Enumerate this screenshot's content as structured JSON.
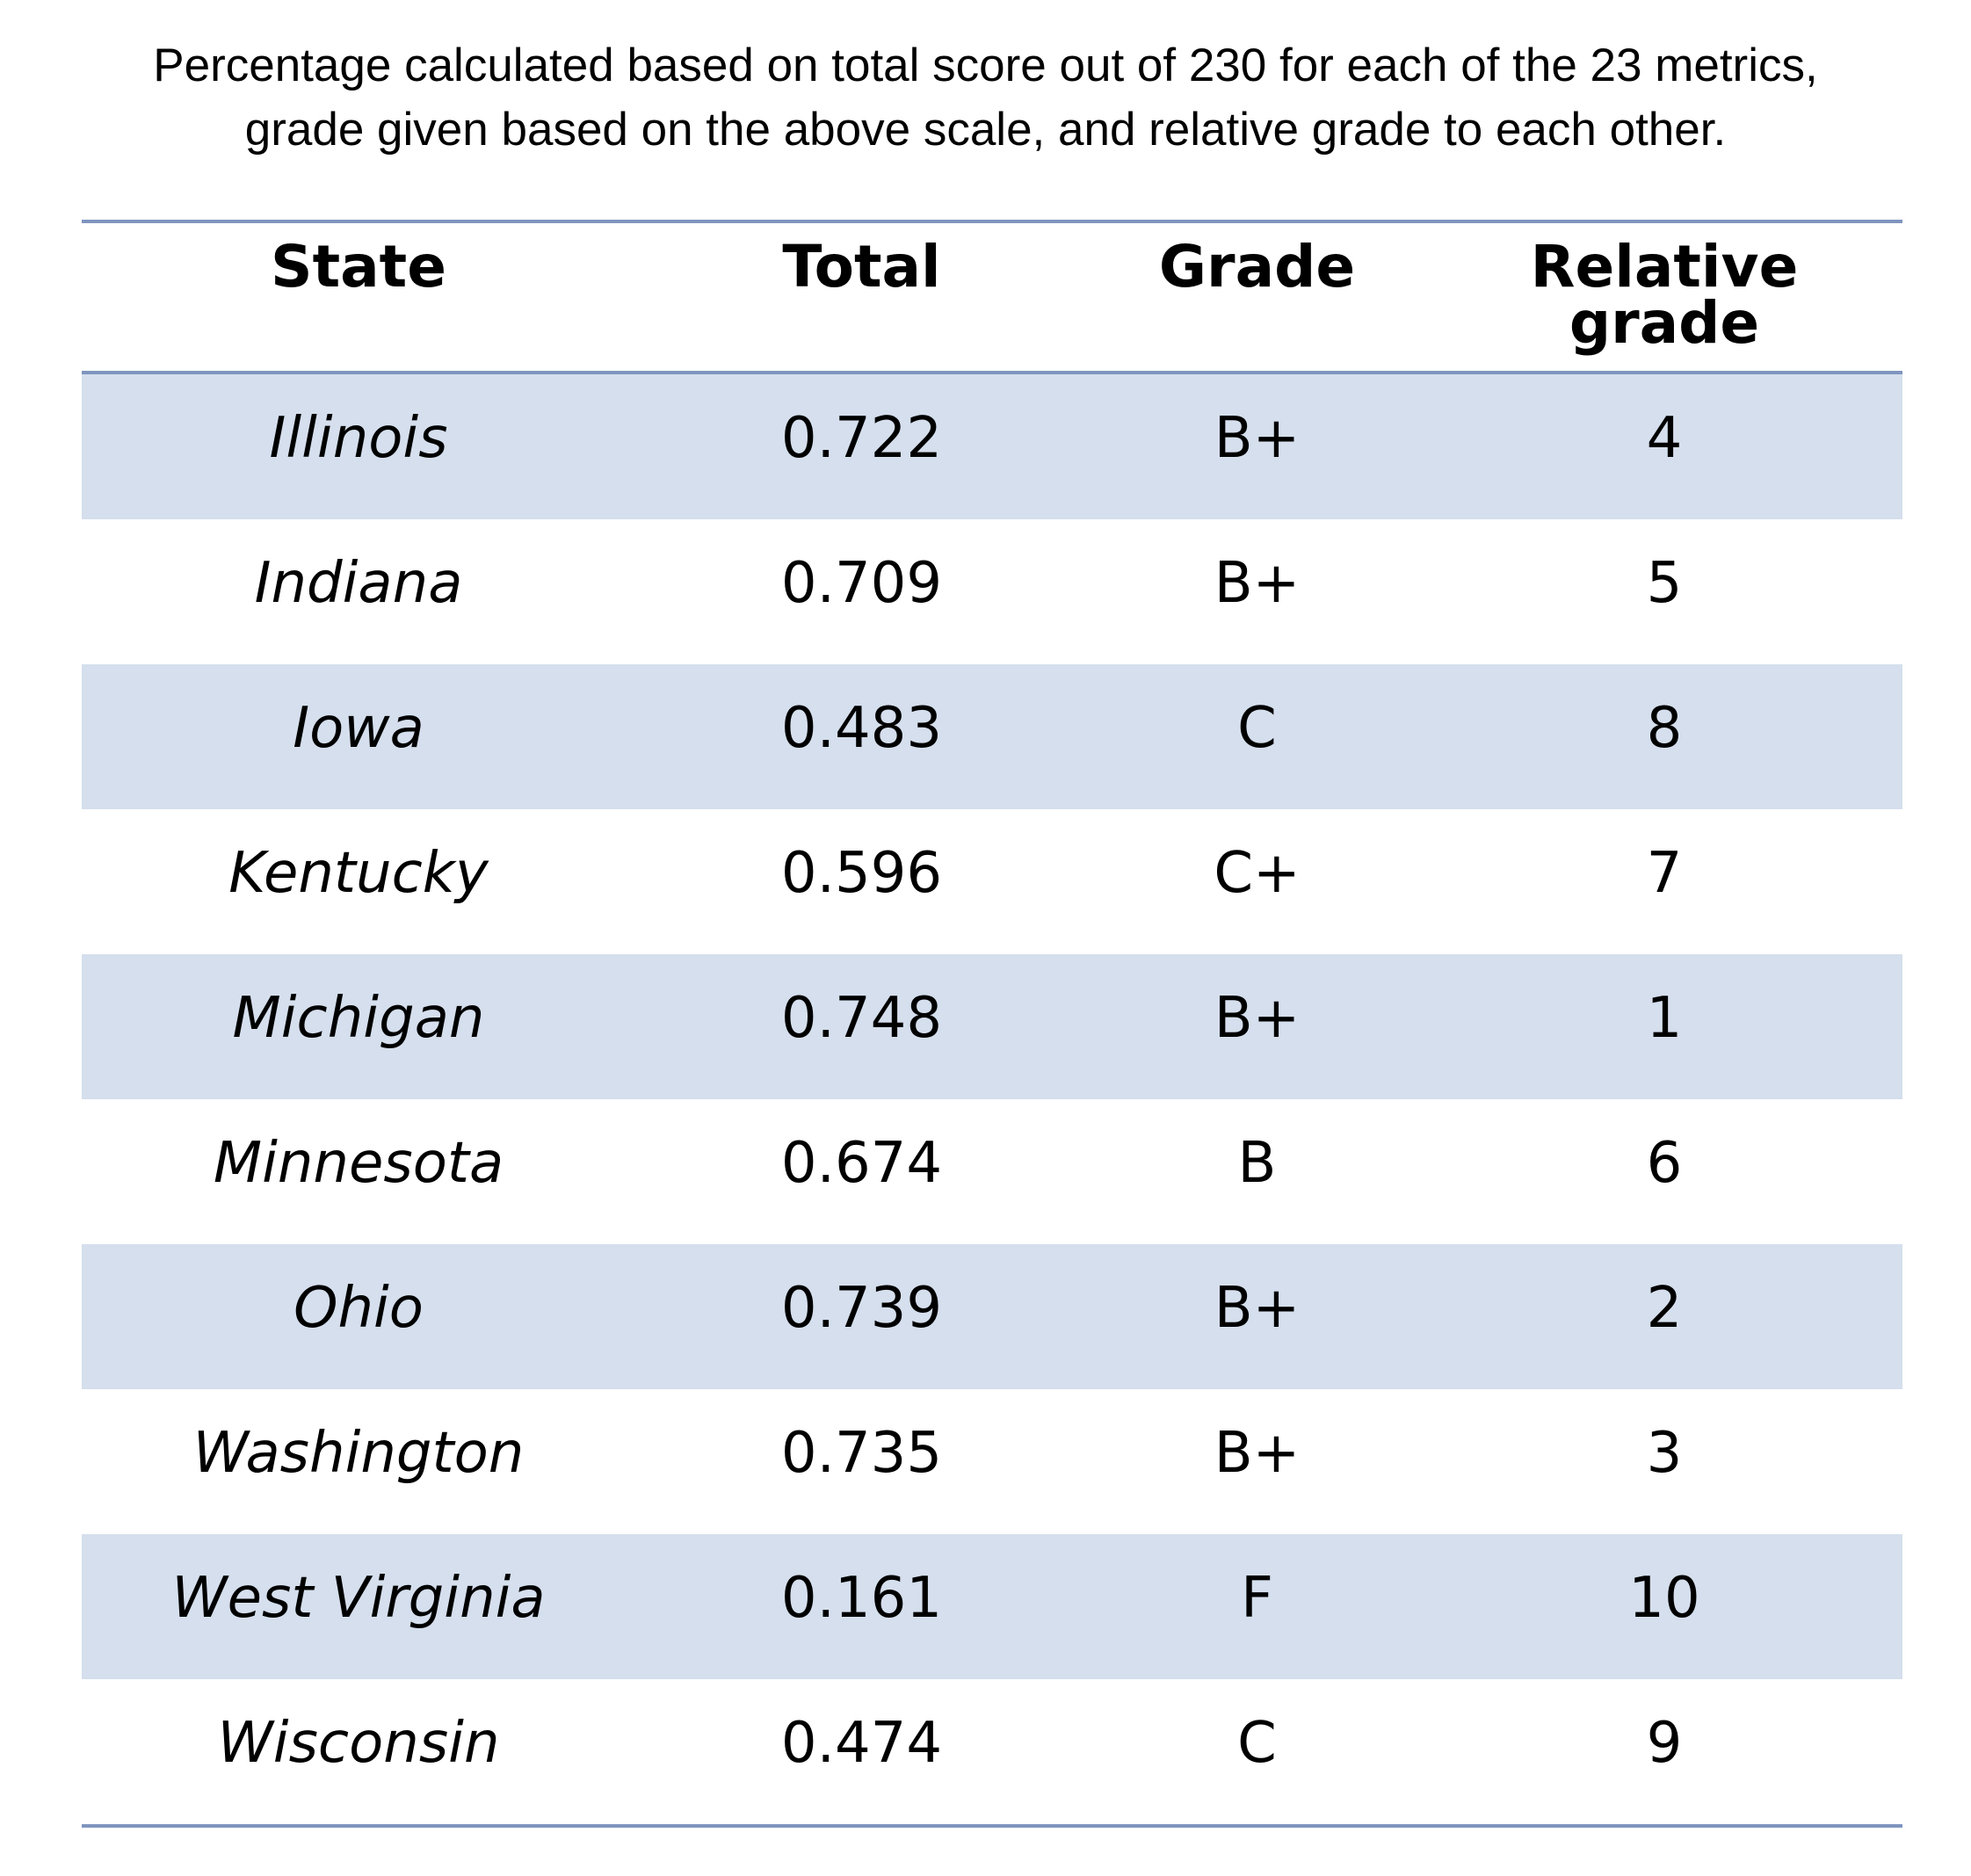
{
  "caption": {
    "line1": "Percentage calculated based on total score out of 230 for each of the 23 metrics,",
    "line2": "grade given based on the above scale, and relative grade to each other."
  },
  "table": {
    "headers": {
      "state": "State",
      "total": "Total",
      "grade": "Grade",
      "relative": "Relative grade"
    },
    "rows": [
      {
        "state": "Illinois",
        "total": "0.722",
        "grade": "B+",
        "relative": "4"
      },
      {
        "state": "Indiana",
        "total": "0.709",
        "grade": "B+",
        "relative": "5"
      },
      {
        "state": "Iowa",
        "total": "0.483",
        "grade": "C",
        "relative": "8"
      },
      {
        "state": "Kentucky",
        "total": "0.596",
        "grade": "C+",
        "relative": "7"
      },
      {
        "state": "Michigan",
        "total": "0.748",
        "grade": "B+",
        "relative": "1"
      },
      {
        "state": "Minnesota",
        "total": "0.674",
        "grade": "B",
        "relative": "6"
      },
      {
        "state": "Ohio",
        "total": "0.739",
        "grade": "B+",
        "relative": "2"
      },
      {
        "state": "Washington",
        "total": "0.735",
        "grade": "B+",
        "relative": "3"
      },
      {
        "state": "West Virginia",
        "total": "0.161",
        "grade": "F",
        "relative": "10"
      },
      {
        "state": "Wisconsin",
        "total": "0.474",
        "grade": "C",
        "relative": "9"
      }
    ]
  },
  "colors": {
    "rule": "#7f95bf",
    "shaded_row": "#d5dfed"
  }
}
